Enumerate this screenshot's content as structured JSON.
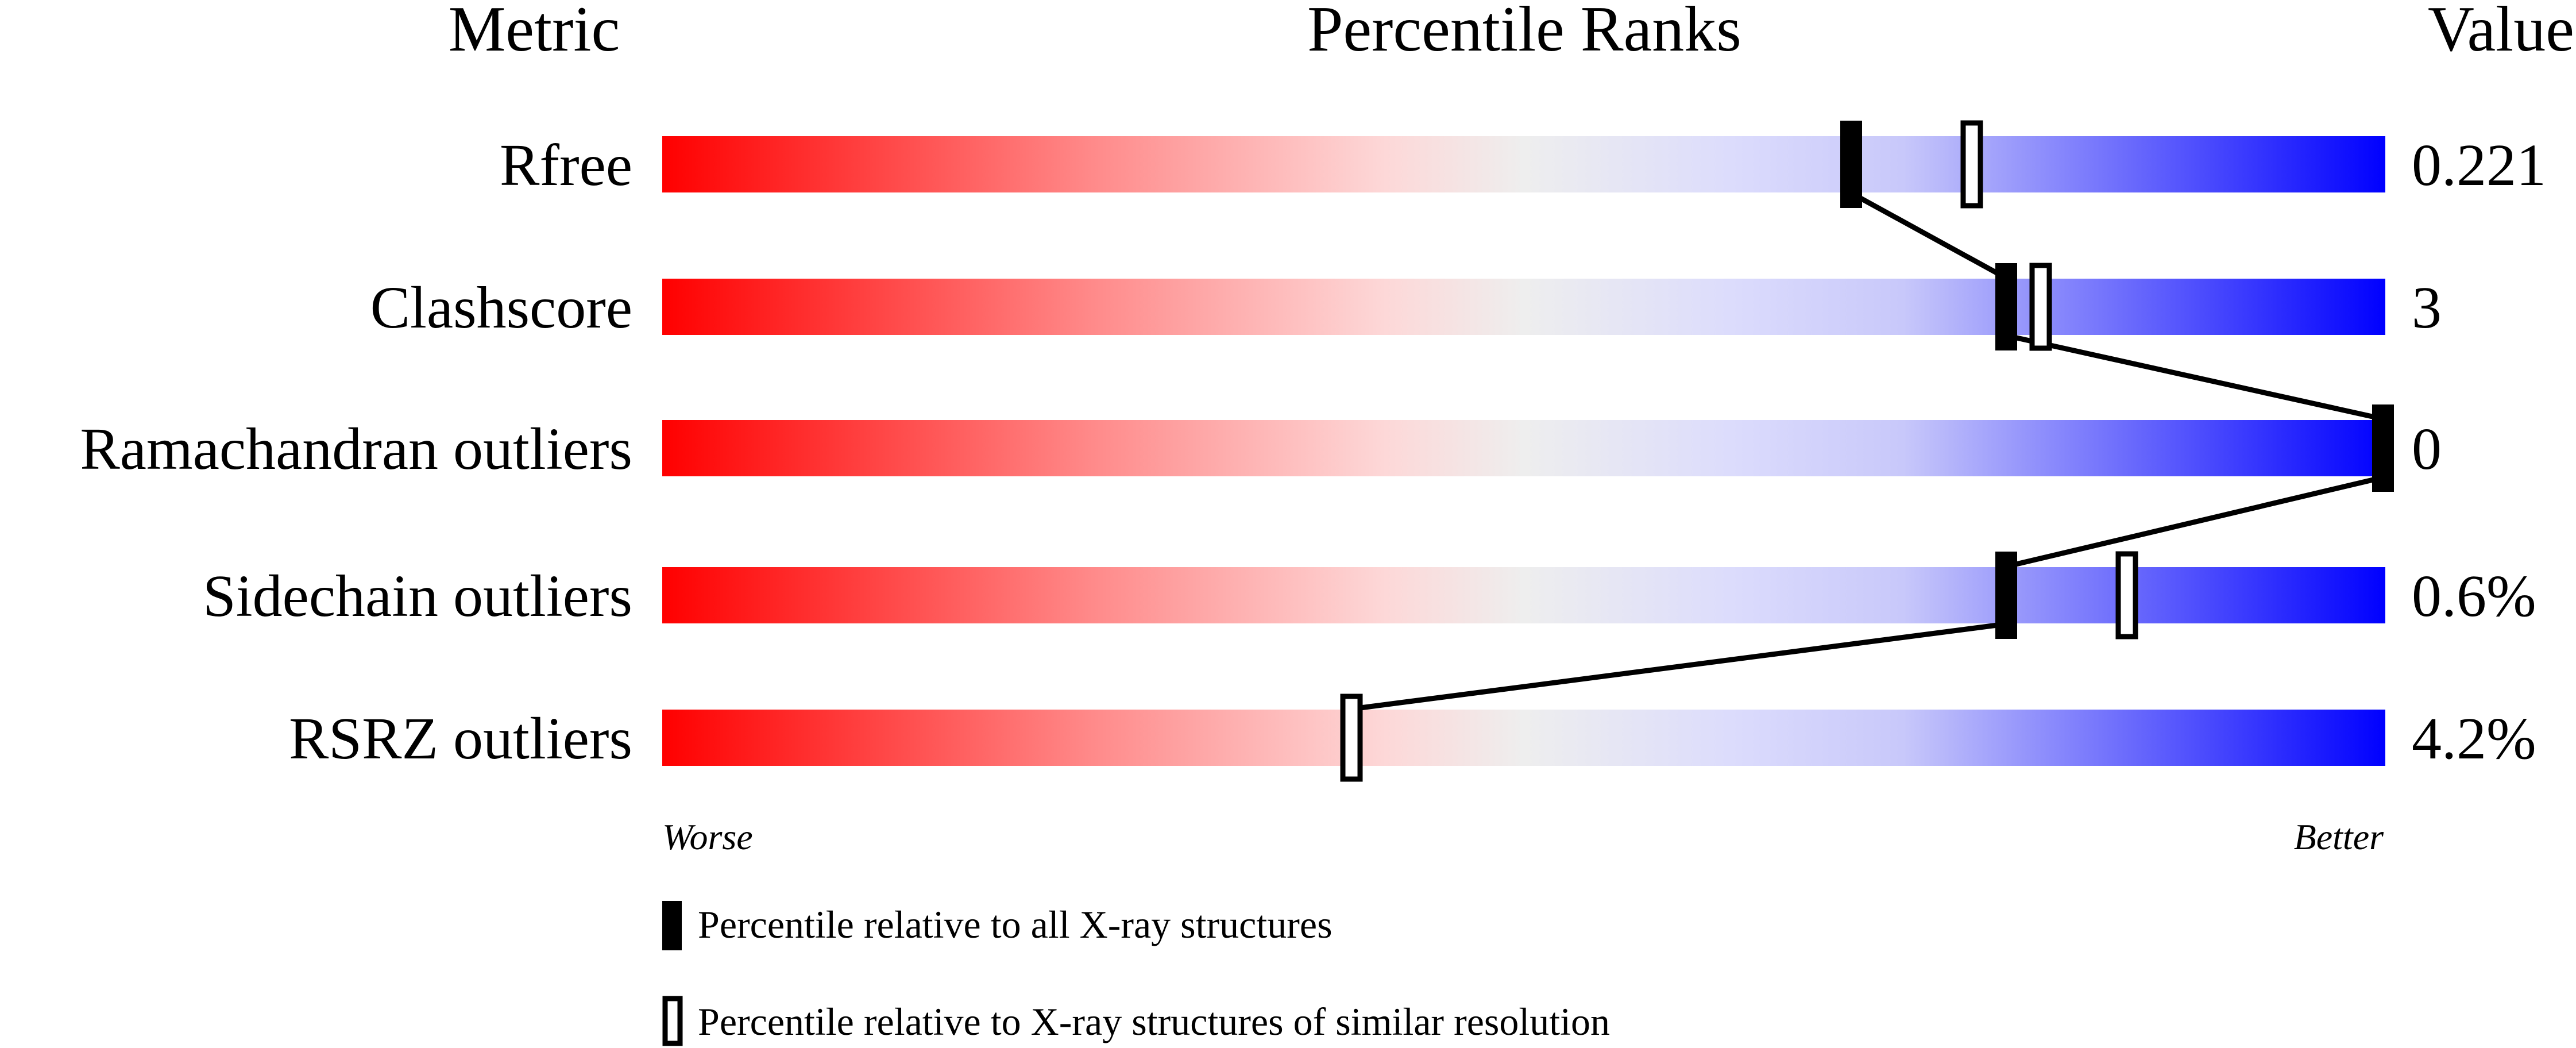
{
  "chart_data": {
    "type": "bar",
    "title": "",
    "headers": {
      "metric": "Metric",
      "ranks": "Percentile Ranks",
      "value": "Value"
    },
    "xlim": [
      0,
      100
    ],
    "scale_labels": {
      "low": "Worse",
      "high": "Better"
    },
    "gradient_colors": [
      "#ff0000",
      "#ff8a8a",
      "#fdd8d8",
      "#eeeeee",
      "#dcdcfc",
      "#c8c8fa",
      "#0000ff"
    ],
    "categories": [
      "Rfree",
      "Clashscore",
      "Ramachandran outliers",
      "Sidechain outliers",
      "RSRZ outliers"
    ],
    "values_display": [
      "0.221",
      "3",
      "0",
      "0.6%",
      "4.2%"
    ],
    "series": [
      {
        "name": "Percentile relative to all X-ray structures",
        "style": "filled",
        "values": [
          69,
          78,
          100,
          78,
          40
        ]
      },
      {
        "name": "Percentile relative to X-ray structures of similar resolution",
        "style": "open",
        "values": [
          76,
          80,
          null,
          85,
          40
        ]
      }
    ],
    "legend_placement": "bottom-left",
    "grid": false
  }
}
